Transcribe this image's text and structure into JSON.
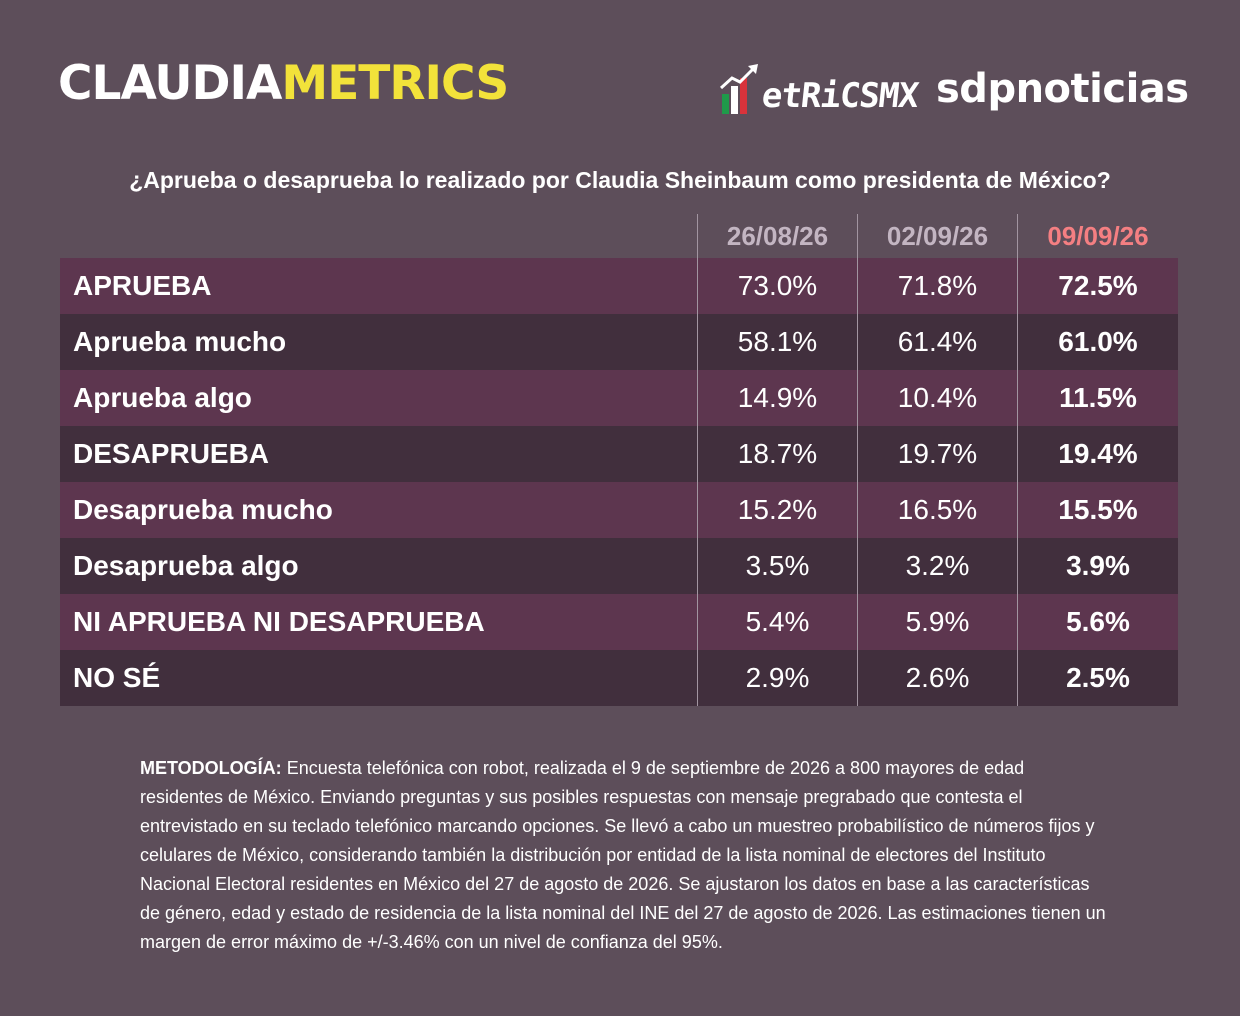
{
  "header": {
    "brand_part1": "CLAUDIA",
    "brand_part2": "METRICS",
    "metricsmx_text": "etRiCSMX",
    "sdp_text": "sdpnoticias"
  },
  "colors": {
    "background": "#5d4e5a",
    "row_odd": "#5d364f",
    "row_even": "#412f3d",
    "brand_yellow": "#f2e23a",
    "latest_date": "#f47f82",
    "date_header": "#c3b5c2"
  },
  "chart_data": {
    "type": "table",
    "title": "¿Aprueba o desaprueba lo realizado por Claudia Sheinbaum como presidenta de México?",
    "columns": [
      "26/08/26",
      "02/09/26",
      "09/09/26"
    ],
    "rows": [
      {
        "label": "APRUEBA",
        "values": [
          "73.0%",
          "71.8%",
          "72.5%"
        ]
      },
      {
        "label": "Aprueba mucho",
        "values": [
          "58.1%",
          "61.4%",
          "61.0%"
        ]
      },
      {
        "label": "Aprueba algo",
        "values": [
          "14.9%",
          "10.4%",
          "11.5%"
        ]
      },
      {
        "label": "DESAPRUEBA",
        "values": [
          "18.7%",
          "19.7%",
          "19.4%"
        ]
      },
      {
        "label": "Desaprueba mucho",
        "values": [
          "15.2%",
          "16.5%",
          "15.5%"
        ]
      },
      {
        "label": "Desaprueba algo",
        "values": [
          "3.5%",
          "3.2%",
          "3.9%"
        ]
      },
      {
        "label": "NI APRUEBA NI DESAPRUEBA",
        "values": [
          "5.4%",
          "5.9%",
          "5.6%"
        ]
      },
      {
        "label": "NO SÉ",
        "values": [
          "2.9%",
          "2.6%",
          "2.5%"
        ]
      }
    ]
  },
  "methodology": {
    "label": "METODOLOGÍA:",
    "text": "Encuesta telefónica con robot, realizada el 9 de septiembre de 2026 a 800 mayores de edad residentes de México. Enviando preguntas y sus posibles respuestas con mensaje pregrabado que contesta el entrevistado en su teclado telefónico marcando opciones. Se llevó a cabo un muestreo probabilístico de números fijos y celulares de México, considerando también la distribución por entidad de la lista nominal de electores del Instituto Nacional Electoral residentes en México del 27 de agosto de 2026. Se ajustaron los datos en base a las características de género, edad y estado de residencia de la lista nominal del INE del 27 de agosto de 2026. Las estimaciones tienen un margen de error máximo de +/-3.46% con un nivel de confianza del 95%."
  }
}
